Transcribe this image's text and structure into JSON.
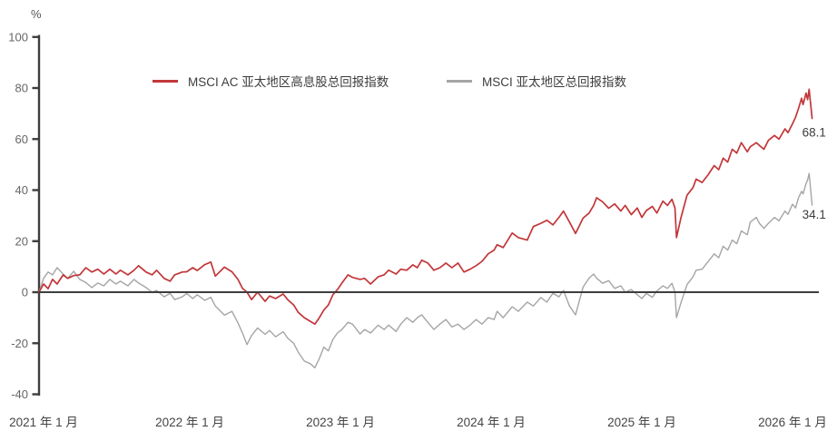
{
  "chart": {
    "percent_label": "%",
    "axis_color": "#3d3d3d"
  },
  "chart_data": {
    "type": "line",
    "title": "",
    "ylabel": "%",
    "ylim": [
      -40,
      100
    ],
    "yticks": [
      100,
      80,
      60,
      40,
      20,
      0,
      -20,
      -40
    ],
    "xticks": [
      "2021 年 1 月",
      "2022 年 1 月",
      "2023 年 1 月",
      "2024 年 1 月",
      "2025 年 1 月",
      "2026 年 1 月"
    ],
    "x_unit": "years since 2021-01",
    "grid": false,
    "legend_position": "top",
    "x": [
      0,
      0.03,
      0.06,
      0.09,
      0.12,
      0.16,
      0.19,
      0.23,
      0.27,
      0.31,
      0.35,
      0.39,
      0.43,
      0.47,
      0.51,
      0.54,
      0.59,
      0.63,
      0.66,
      0.71,
      0.75,
      0.78,
      0.83,
      0.87,
      0.9,
      0.95,
      0.98,
      1.02,
      1.05,
      1.1,
      1.14,
      1.17,
      1.23,
      1.28,
      1.32,
      1.35,
      1.38,
      1.41,
      1.45,
      1.5,
      1.53,
      1.57,
      1.62,
      1.65,
      1.69,
      1.72,
      1.76,
      1.8,
      1.83,
      1.86,
      1.89,
      1.92,
      1.95,
      1.98,
      2.01,
      2.05,
      2.08,
      2.13,
      2.16,
      2.2,
      2.25,
      2.29,
      2.32,
      2.37,
      2.4,
      2.44,
      2.48,
      2.51,
      2.54,
      2.58,
      2.62,
      2.66,
      2.7,
      2.74,
      2.78,
      2.82,
      2.86,
      2.9,
      2.94,
      2.98,
      3.02,
      3.04,
      3.08,
      3.14,
      3.18,
      3.24,
      3.28,
      3.33,
      3.37,
      3.41,
      3.45,
      3.48,
      3.52,
      3.56,
      3.61,
      3.65,
      3.68,
      3.7,
      3.74,
      3.78,
      3.82,
      3.86,
      3.89,
      3.93,
      3.97,
      4,
      4.03,
      4.07,
      4.1,
      4.14,
      4.17,
      4.2,
      4.22,
      4.23,
      4.26,
      4.3,
      4.34,
      4.36,
      4.4,
      4.44,
      4.48,
      4.51,
      4.54,
      4.57,
      4.6,
      4.63,
      4.66,
      4.7,
      4.72,
      4.76,
      4.78,
      4.81,
      4.84,
      4.88,
      4.91,
      4.95,
      4.97,
      5,
      5.02,
      5.04,
      5.06,
      5.07,
      5.09,
      5.1,
      5.11,
      5.13
    ],
    "series": [
      {
        "name": "MSCI AC 亚太地区高息股总回报指数",
        "color": "#c23639",
        "end_label": "68.1",
        "end_value": 68.1,
        "values": [
          0,
          3.2,
          1.4,
          5,
          3.2,
          6.8,
          5.4,
          6.5,
          6.8,
          9.6,
          7.9,
          9,
          7.1,
          9,
          7.1,
          8.6,
          6.8,
          8.6,
          10.4,
          7.9,
          6.8,
          8.6,
          5.4,
          4.3,
          6.8,
          7.9,
          8,
          9.6,
          8.5,
          10.8,
          11.8,
          6.3,
          9.8,
          8,
          5,
          1.5,
          0,
          -2.9,
          0,
          -3.6,
          -1.5,
          -2.5,
          -0.7,
          -2.9,
          -5,
          -7.9,
          -10,
          -11.4,
          -12.5,
          -10,
          -7,
          -5,
          -1,
          1,
          3.6,
          6.8,
          5.8,
          5,
          5.4,
          3.2,
          6,
          6.8,
          8.6,
          7.1,
          9,
          8.6,
          10.7,
          9.6,
          12.5,
          11.4,
          8.6,
          9.6,
          11.4,
          9.6,
          11.4,
          7.9,
          9,
          10.4,
          12.1,
          15,
          16.5,
          18.6,
          17.5,
          23.2,
          21.4,
          20.4,
          25.7,
          27,
          28.2,
          26.4,
          29.3,
          31.8,
          27.5,
          23,
          29,
          31,
          34,
          37,
          35.4,
          32.9,
          34.6,
          31.8,
          34,
          30.4,
          33,
          29.3,
          32,
          33.6,
          31,
          35.7,
          34,
          36.4,
          33,
          21.4,
          29.3,
          38,
          41,
          44.3,
          43,
          46,
          49.6,
          48,
          52.5,
          51,
          56,
          54.5,
          58.6,
          55,
          57,
          58.6,
          57.5,
          56,
          59.5,
          61.4,
          60,
          64,
          62.5,
          66,
          68.5,
          72,
          76,
          73.5,
          78,
          75.5,
          79.5,
          68.1
        ]
      },
      {
        "name": "MSCI 亚太地区总回报指数",
        "color": "#a5a5a5",
        "end_label": "34.1",
        "end_value": 34.1,
        "values": [
          0,
          5.4,
          7.9,
          6.8,
          9.6,
          7.1,
          5.4,
          8.2,
          5,
          3.8,
          1.8,
          3.6,
          2.5,
          5,
          3.2,
          4.3,
          2.5,
          5,
          3.6,
          1.8,
          0,
          0.7,
          -1.8,
          -0.4,
          -2.9,
          -1.8,
          -0.5,
          -2.5,
          -1,
          -3.2,
          -2,
          -5.4,
          -9,
          -7.5,
          -12,
          -16,
          -20.5,
          -17,
          -14,
          -16.5,
          -15,
          -17.5,
          -15.5,
          -18,
          -20,
          -23.5,
          -27,
          -28,
          -29.6,
          -26,
          -21.5,
          -23,
          -18.5,
          -16,
          -14.6,
          -11.8,
          -12.5,
          -16.4,
          -14.6,
          -16,
          -12.9,
          -14.6,
          -12.9,
          -15.4,
          -12.5,
          -10,
          -11.8,
          -10,
          -8.9,
          -11.8,
          -14.6,
          -12.5,
          -10.7,
          -13.6,
          -12.5,
          -14.6,
          -12.9,
          -10.7,
          -12.5,
          -10,
          -10.7,
          -7.5,
          -10,
          -5.7,
          -7.5,
          -3.9,
          -5.4,
          -2.1,
          -3.9,
          -0.4,
          -1.8,
          0.7,
          -5.4,
          -8.9,
          2,
          5.5,
          7.1,
          5.5,
          3.5,
          4.5,
          1.5,
          2.5,
          0,
          1,
          -1,
          -2.5,
          -0.5,
          -2,
          0.5,
          2.5,
          1.5,
          3.5,
          0,
          -10,
          -4,
          3,
          6,
          8.6,
          9,
          12,
          15,
          13.5,
          18,
          16.5,
          20.4,
          19,
          24,
          22.5,
          27.5,
          29.3,
          27,
          25,
          27,
          29.3,
          28,
          31.8,
          30.5,
          34.5,
          33,
          37,
          39.5,
          38.5,
          42.5,
          44,
          46.5,
          34.1
        ]
      }
    ]
  }
}
